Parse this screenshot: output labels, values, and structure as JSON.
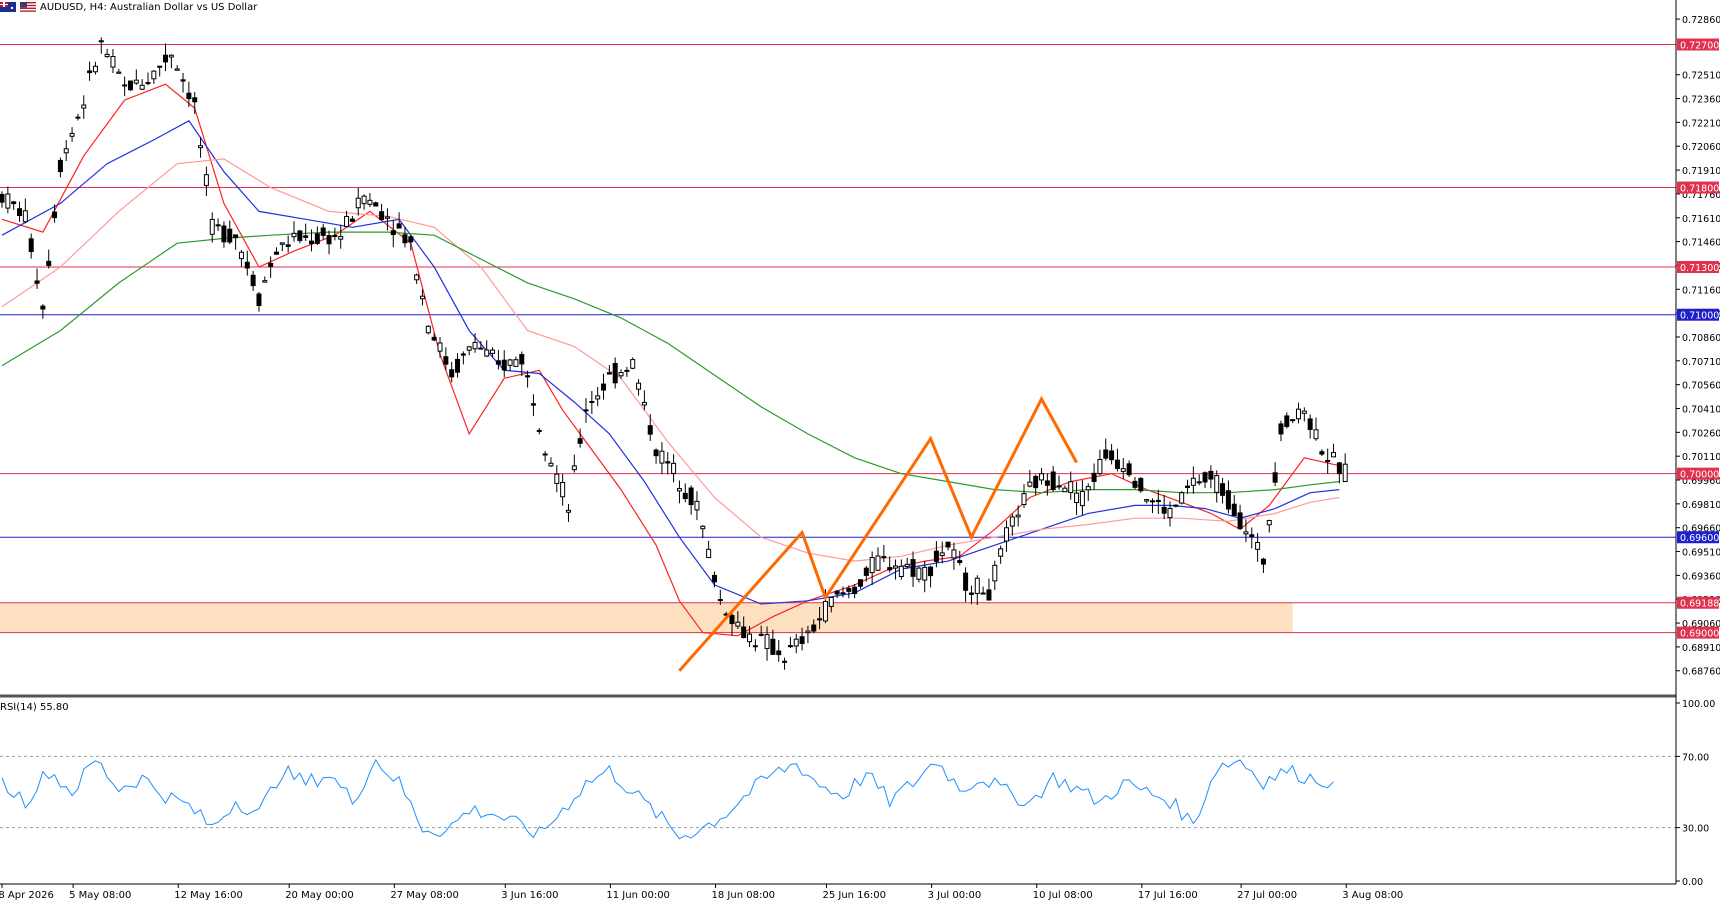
{
  "header": {
    "symbol_title": "AUDUSD, H4:  Australian Dollar vs US Dollar",
    "flag_icons": [
      "au-flag-icon",
      "us-flag-icon"
    ]
  },
  "rsi_panel": {
    "label": "RSI(14) 55.80",
    "axis_labels": [
      "100.00",
      "70.00",
      "30.00",
      "0.00"
    ],
    "levels": [
      70,
      30
    ],
    "line_color": "#1e90ff"
  },
  "price_axis": {
    "tick_labels": [
      "0.72860",
      "0.72510",
      "0.72360",
      "0.72210",
      "0.72060",
      "0.71910",
      "0.71760",
      "0.71610",
      "0.71460",
      "0.71310",
      "0.71160",
      "0.71010",
      "0.70860",
      "0.70710",
      "0.70560",
      "0.70410",
      "0.70260",
      "0.70110",
      "0.69960",
      "0.69810",
      "0.69660",
      "0.69510",
      "0.69360",
      "0.69210",
      "0.69060",
      "0.68910",
      "0.68760"
    ]
  },
  "time_axis": {
    "tick_labels": [
      "28 Apr 2026",
      "5 May 08:00",
      "12 May 16:00",
      "20 May 00:00",
      "27 May 08:00",
      "3 Jun 16:00",
      "11 Jun 00:00",
      "18 Jun 08:00",
      "25 Jun 16:00",
      "3 Jul 00:00",
      "10 Jul 08:00",
      "17 Jul 16:00",
      "27 Jul 00:00",
      "3 Aug 08:00"
    ]
  },
  "colors": {
    "resistance_line": "#e0314f",
    "support_line": "#1f1fcc",
    "zone_fill": "#fde0c0",
    "ma_fast": "#ff2222",
    "ma_mid": "#2030e0",
    "ma_slow": "#ff9a9a",
    "ma_long": "#2e9a2e",
    "pattern": "#ff6a00",
    "candle": "#000000"
  },
  "chart_data": {
    "type": "candlestick",
    "symbol": "AUDUSD",
    "timeframe": "H4",
    "title": "AUDUSD, H4:  Australian Dollar vs US Dollar",
    "ylim": [
      0.6862,
      0.7298
    ],
    "y_scale": "linear",
    "horizontal_levels": [
      {
        "label": "0.72700",
        "value": 0.727,
        "style": "resistance"
      },
      {
        "label": "0.71800",
        "value": 0.718,
        "style": "resistance"
      },
      {
        "label": "0.71300",
        "value": 0.713,
        "style": "resistance"
      },
      {
        "label": "0.71000",
        "value": 0.71,
        "style": "support"
      },
      {
        "label": "0.70000",
        "value": 0.7,
        "style": "resistance"
      },
      {
        "label": "0.69600",
        "value": 0.696,
        "style": "support"
      },
      {
        "label": "0.69188",
        "value": 0.69188,
        "style": "resistance"
      },
      {
        "label": "0.69000",
        "value": 0.69,
        "style": "resistance"
      }
    ],
    "zone": {
      "low": 0.69,
      "high": 0.69188,
      "until_x": 221
    },
    "price_path": [
      [
        0,
        0.7175
      ],
      [
        4,
        0.7162
      ],
      [
        7,
        0.7105
      ],
      [
        10,
        0.7195
      ],
      [
        14,
        0.7235
      ],
      [
        17,
        0.727
      ],
      [
        21,
        0.7243
      ],
      [
        25,
        0.7248
      ],
      [
        29,
        0.7265
      ],
      [
        33,
        0.7232
      ],
      [
        36,
        0.7155
      ],
      [
        40,
        0.715
      ],
      [
        44,
        0.7112
      ],
      [
        47,
        0.714
      ],
      [
        50,
        0.7148
      ],
      [
        54,
        0.7148
      ],
      [
        58,
        0.715
      ],
      [
        62,
        0.7175
      ],
      [
        66,
        0.7162
      ],
      [
        70,
        0.7145
      ],
      [
        73,
        0.7095
      ],
      [
        77,
        0.7063
      ],
      [
        81,
        0.7083
      ],
      [
        85,
        0.7067
      ],
      [
        89,
        0.7073
      ],
      [
        93,
        0.702
      ],
      [
        97,
        0.6978
      ],
      [
        100,
        0.7042
      ],
      [
        104,
        0.706
      ],
      [
        108,
        0.707
      ],
      [
        112,
        0.7015
      ],
      [
        116,
        0.6997
      ],
      [
        119,
        0.698
      ],
      [
        123,
        0.692
      ],
      [
        127,
        0.69
      ],
      [
        131,
        0.6893
      ],
      [
        134,
        0.6885
      ],
      [
        138,
        0.6898
      ],
      [
        142,
        0.692
      ],
      [
        146,
        0.6928
      ],
      [
        150,
        0.6945
      ],
      [
        154,
        0.6943
      ],
      [
        158,
        0.6938
      ],
      [
        162,
        0.6955
      ],
      [
        165,
        0.6932
      ],
      [
        169,
        0.6925
      ],
      [
        173,
        0.697
      ],
      [
        177,
        0.6995
      ],
      [
        181,
        0.6997
      ],
      [
        185,
        0.6985
      ],
      [
        189,
        0.7012
      ],
      [
        193,
        0.7005
      ],
      [
        196,
        0.6985
      ],
      [
        200,
        0.6975
      ],
      [
        204,
        0.6995
      ],
      [
        208,
        0.6995
      ],
      [
        212,
        0.6972
      ],
      [
        216,
        0.6945
      ],
      [
        219,
        0.703
      ],
      [
        223,
        0.704
      ],
      [
        227,
        0.701
      ],
      [
        230,
        0.7
      ]
    ],
    "moving_averages": [
      {
        "id": "ma_fast",
        "color_key": "ma_fast",
        "values": [
          [
            0,
            0.716
          ],
          [
            7,
            0.7152
          ],
          [
            14,
            0.72
          ],
          [
            21,
            0.7235
          ],
          [
            28,
            0.7245
          ],
          [
            33,
            0.723
          ],
          [
            38,
            0.717
          ],
          [
            44,
            0.713
          ],
          [
            50,
            0.714
          ],
          [
            57,
            0.715
          ],
          [
            63,
            0.7165
          ],
          [
            70,
            0.7145
          ],
          [
            75,
            0.7075
          ],
          [
            80,
            0.7025
          ],
          [
            86,
            0.706
          ],
          [
            92,
            0.7065
          ],
          [
            96,
            0.704
          ],
          [
            100,
            0.702
          ],
          [
            106,
            0.699
          ],
          [
            112,
            0.6955
          ],
          [
            116,
            0.692
          ],
          [
            120,
            0.69
          ],
          [
            126,
            0.6898
          ],
          [
            132,
            0.691
          ],
          [
            138,
            0.692
          ],
          [
            146,
            0.693
          ],
          [
            152,
            0.694
          ],
          [
            158,
            0.6945
          ],
          [
            164,
            0.6948
          ],
          [
            170,
            0.6965
          ],
          [
            176,
            0.6985
          ],
          [
            183,
            0.6995
          ],
          [
            190,
            0.7
          ],
          [
            196,
            0.699
          ],
          [
            202,
            0.6982
          ],
          [
            207,
            0.6975
          ],
          [
            212,
            0.6965
          ],
          [
            217,
            0.698
          ],
          [
            223,
            0.701
          ],
          [
            229,
            0.7005
          ]
        ]
      },
      {
        "id": "ma_mid",
        "color_key": "ma_mid",
        "values": [
          [
            0,
            0.715
          ],
          [
            10,
            0.717
          ],
          [
            18,
            0.7195
          ],
          [
            26,
            0.721
          ],
          [
            32,
            0.7222
          ],
          [
            38,
            0.719
          ],
          [
            44,
            0.7165
          ],
          [
            52,
            0.716
          ],
          [
            60,
            0.7155
          ],
          [
            68,
            0.716
          ],
          [
            74,
            0.713
          ],
          [
            80,
            0.709
          ],
          [
            86,
            0.7065
          ],
          [
            92,
            0.7063
          ],
          [
            98,
            0.7045
          ],
          [
            104,
            0.7025
          ],
          [
            110,
            0.6995
          ],
          [
            116,
            0.696
          ],
          [
            122,
            0.693
          ],
          [
            130,
            0.6918
          ],
          [
            138,
            0.692
          ],
          [
            146,
            0.6925
          ],
          [
            154,
            0.694
          ],
          [
            162,
            0.6945
          ],
          [
            170,
            0.6955
          ],
          [
            178,
            0.6965
          ],
          [
            186,
            0.6975
          ],
          [
            194,
            0.698
          ],
          [
            200,
            0.698
          ],
          [
            206,
            0.6978
          ],
          [
            212,
            0.6972
          ],
          [
            218,
            0.6978
          ],
          [
            224,
            0.6988
          ],
          [
            229,
            0.699
          ]
        ]
      },
      {
        "id": "ma_slow",
        "color_key": "ma_slow",
        "values": [
          [
            0,
            0.7105
          ],
          [
            10,
            0.713
          ],
          [
            20,
            0.7165
          ],
          [
            30,
            0.7195
          ],
          [
            38,
            0.7198
          ],
          [
            46,
            0.718
          ],
          [
            56,
            0.7165
          ],
          [
            66,
            0.7162
          ],
          [
            74,
            0.7155
          ],
          [
            82,
            0.713
          ],
          [
            90,
            0.709
          ],
          [
            98,
            0.708
          ],
          [
            106,
            0.706
          ],
          [
            114,
            0.702
          ],
          [
            122,
            0.6985
          ],
          [
            130,
            0.696
          ],
          [
            138,
            0.695
          ],
          [
            146,
            0.6945
          ],
          [
            154,
            0.6948
          ],
          [
            162,
            0.6955
          ],
          [
            170,
            0.696
          ],
          [
            178,
            0.6965
          ],
          [
            186,
            0.6968
          ],
          [
            194,
            0.6972
          ],
          [
            202,
            0.6972
          ],
          [
            210,
            0.697
          ],
          [
            218,
            0.6975
          ],
          [
            224,
            0.6982
          ],
          [
            229,
            0.6985
          ]
        ]
      },
      {
        "id": "ma_long",
        "color_key": "ma_long",
        "values": [
          [
            0,
            0.7068
          ],
          [
            10,
            0.709
          ],
          [
            20,
            0.712
          ],
          [
            30,
            0.7145
          ],
          [
            38,
            0.7148
          ],
          [
            46,
            0.715
          ],
          [
            56,
            0.7152
          ],
          [
            66,
            0.7152
          ],
          [
            74,
            0.715
          ],
          [
            82,
            0.7135
          ],
          [
            90,
            0.712
          ],
          [
            98,
            0.711
          ],
          [
            106,
            0.7098
          ],
          [
            114,
            0.7082
          ],
          [
            122,
            0.7062
          ],
          [
            130,
            0.7042
          ],
          [
            138,
            0.7025
          ],
          [
            146,
            0.701
          ],
          [
            154,
            0.7
          ],
          [
            162,
            0.6995
          ],
          [
            170,
            0.699
          ],
          [
            178,
            0.6988
          ],
          [
            186,
            0.699
          ],
          [
            194,
            0.699
          ],
          [
            202,
            0.6988
          ],
          [
            210,
            0.6988
          ],
          [
            218,
            0.699
          ],
          [
            224,
            0.6993
          ],
          [
            229,
            0.6995
          ]
        ]
      }
    ],
    "pattern_line": [
      [
        116,
        0.6876
      ],
      [
        137,
        0.6963
      ],
      [
        141,
        0.6922
      ],
      [
        159,
        0.7022
      ],
      [
        166,
        0.696
      ],
      [
        178,
        0.7047
      ],
      [
        184,
        0.7007
      ]
    ],
    "rsi_values": [
      [
        0,
        55
      ],
      [
        4,
        45
      ],
      [
        8,
        62
      ],
      [
        12,
        50
      ],
      [
        16,
        68
      ],
      [
        20,
        52
      ],
      [
        24,
        58
      ],
      [
        28,
        48
      ],
      [
        32,
        42
      ],
      [
        36,
        30
      ],
      [
        40,
        45
      ],
      [
        44,
        38
      ],
      [
        48,
        62
      ],
      [
        52,
        55
      ],
      [
        56,
        60
      ],
      [
        60,
        45
      ],
      [
        64,
        68
      ],
      [
        68,
        55
      ],
      [
        72,
        30
      ],
      [
        76,
        28
      ],
      [
        80,
        40
      ],
      [
        84,
        38
      ],
      [
        88,
        32
      ],
      [
        92,
        26
      ],
      [
        96,
        40
      ],
      [
        100,
        55
      ],
      [
        104,
        62
      ],
      [
        108,
        50
      ],
      [
        112,
        38
      ],
      [
        116,
        25
      ],
      [
        120,
        30
      ],
      [
        124,
        38
      ],
      [
        128,
        50
      ],
      [
        132,
        60
      ],
      [
        136,
        66
      ],
      [
        140,
        54
      ],
      [
        144,
        48
      ],
      [
        148,
        60
      ],
      [
        152,
        45
      ],
      [
        156,
        55
      ],
      [
        160,
        68
      ],
      [
        164,
        52
      ],
      [
        168,
        58
      ],
      [
        172,
        50
      ],
      [
        176,
        44
      ],
      [
        180,
        58
      ],
      [
        184,
        52
      ],
      [
        188,
        44
      ],
      [
        192,
        55
      ],
      [
        196,
        50
      ],
      [
        200,
        45
      ],
      [
        204,
        32
      ],
      [
        208,
        64
      ],
      [
        212,
        68
      ],
      [
        216,
        56
      ],
      [
        220,
        62
      ],
      [
        224,
        58
      ],
      [
        228,
        55.8
      ]
    ]
  }
}
